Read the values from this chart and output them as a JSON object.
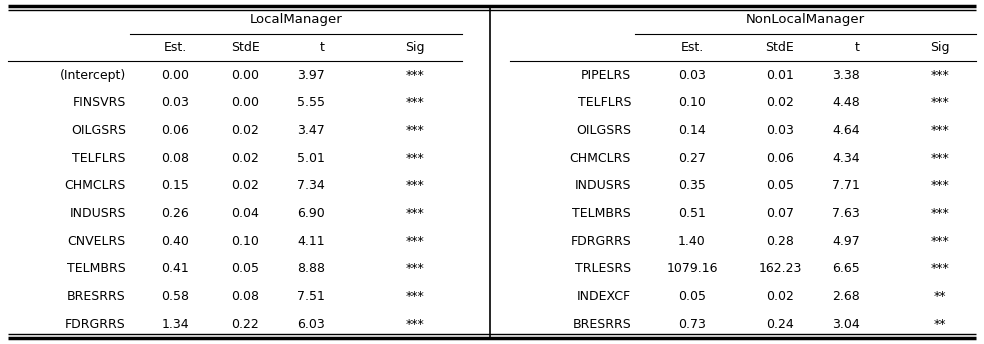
{
  "local_header": "LocalManager",
  "nonlocal_header": "NonLocalManager",
  "col_headers": [
    "Est.",
    "StdE",
    "t",
    "Sig"
  ],
  "local_rows": [
    [
      "(Intercept)",
      "0.00",
      "0.00",
      "3.97",
      "***"
    ],
    [
      "FINSVRS",
      "0.03",
      "0.00",
      "5.55",
      "***"
    ],
    [
      "OILGSRS",
      "0.06",
      "0.02",
      "3.47",
      "***"
    ],
    [
      "TELFLRS",
      "0.08",
      "0.02",
      "5.01",
      "***"
    ],
    [
      "CHMCLRS",
      "0.15",
      "0.02",
      "7.34",
      "***"
    ],
    [
      "INDUSRS",
      "0.26",
      "0.04",
      "6.90",
      "***"
    ],
    [
      "CNVELRS",
      "0.40",
      "0.10",
      "4.11",
      "***"
    ],
    [
      "TELMBRS",
      "0.41",
      "0.05",
      "8.88",
      "***"
    ],
    [
      "BRESRRS",
      "0.58",
      "0.08",
      "7.51",
      "***"
    ],
    [
      "FDRGRRS",
      "1.34",
      "0.22",
      "6.03",
      "***"
    ]
  ],
  "nonlocal_rows": [
    [
      "PIPELRS",
      "0.03",
      "0.01",
      "3.38",
      "***"
    ],
    [
      "TELFLRS",
      "0.10",
      "0.02",
      "4.48",
      "***"
    ],
    [
      "OILGSRS",
      "0.14",
      "0.03",
      "4.64",
      "***"
    ],
    [
      "CHMCLRS",
      "0.27",
      "0.06",
      "4.34",
      "***"
    ],
    [
      "INDUSRS",
      "0.35",
      "0.05",
      "7.71",
      "***"
    ],
    [
      "TELMBRS",
      "0.51",
      "0.07",
      "7.63",
      "***"
    ],
    [
      "FDRGRRS",
      "1.40",
      "0.28",
      "4.97",
      "***"
    ],
    [
      "TRLESRS",
      "1079.16",
      "162.23",
      "6.65",
      "***"
    ],
    [
      "INDEXCF",
      "0.05",
      "0.02",
      "2.68",
      "**"
    ],
    [
      "BRESRRS",
      "0.73",
      "0.24",
      "3.04",
      "**"
    ]
  ],
  "bg_color": "#ffffff",
  "text_color": "#000000",
  "line_color": "#000000",
  "font_size": 9.0,
  "header_font_size": 9.5
}
